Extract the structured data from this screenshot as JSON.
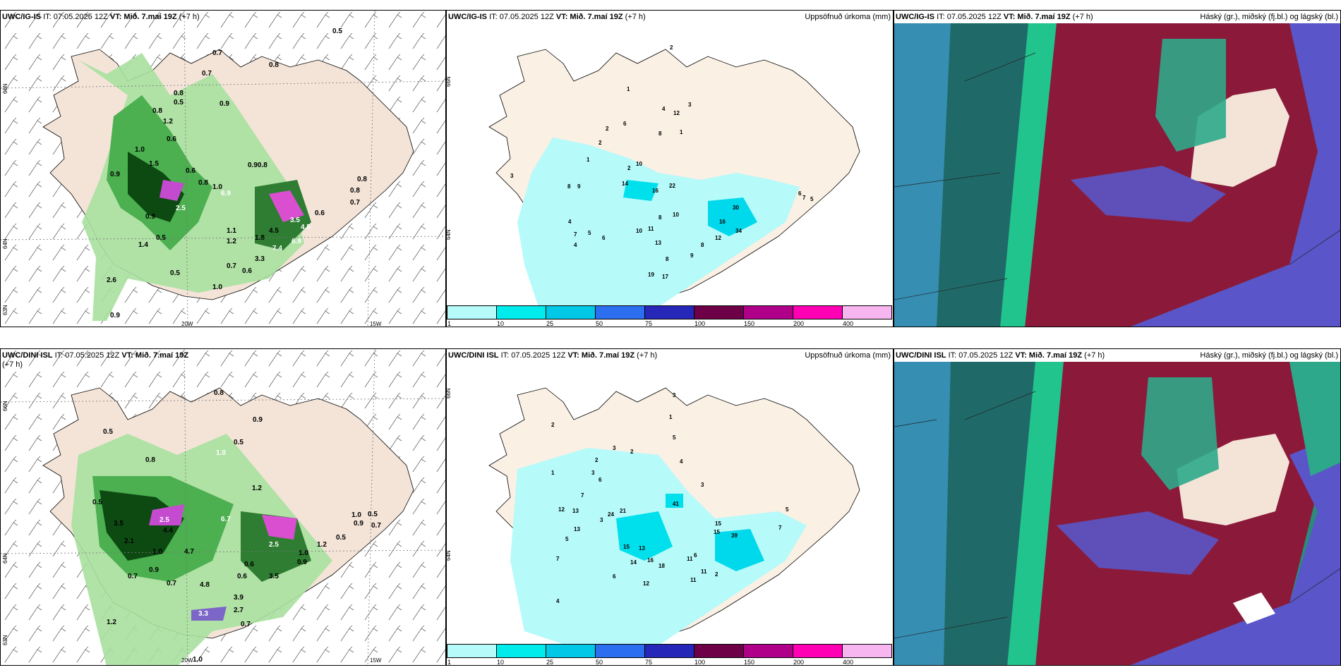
{
  "panels": {
    "wind_top": {
      "model": "UWC/IG-IS",
      "run_label": "IT: 07.05.2025 12Z",
      "valid_label": "VT: Mið. 7.maí 19Z",
      "lead": "(+7 h)",
      "lat_labels": [
        "66N",
        "64N",
        "63N"
      ],
      "lon_labels": [
        "20W",
        "15W"
      ],
      "values": [
        "0.5",
        "0.7",
        "0.7",
        "0.8",
        "0.8",
        "0.5",
        "0.9",
        "0.8",
        "1.2",
        "0.6",
        "0.9",
        "1.0",
        "1.5",
        "0.6",
        "0.90.8",
        "1.0",
        "0.8",
        "2.5",
        "0.9",
        "6.9",
        "4.5",
        "3.5",
        "1.8",
        "1.4",
        "1.1",
        "1.2",
        "3.3",
        "7.4",
        "6.9",
        "4.5",
        "0.5",
        "0.7",
        "0.6",
        "0.5",
        "1.0",
        "2.6",
        "0.9",
        "0.6",
        "0.8",
        "0.8",
        "0.7"
      ]
    },
    "precip_top": {
      "model": "UWC/IG-IS",
      "run_label": "IT: 07.05.2025 12Z",
      "valid_label": "VT: Mið. 7.maí 19Z",
      "lead": "(+7 h)",
      "field_title": "Uppsöfnuð úrkoma (mm)",
      "lat_labels": [
        "66N",
        "64N"
      ],
      "values": [
        "2",
        "1",
        "4",
        "12",
        "8",
        "1",
        "3",
        "2",
        "6",
        "2",
        "1",
        "10",
        "2",
        "3",
        "8",
        "9",
        "14",
        "16",
        "22",
        "10",
        "30",
        "16",
        "34",
        "12",
        "6",
        "7",
        "5",
        "4",
        "7",
        "10",
        "11",
        "8",
        "4",
        "13",
        "8",
        "9",
        "19",
        "17",
        "8",
        "6",
        "5"
      ]
    },
    "cloud_top": {
      "model": "UWC/IG-IS",
      "run_label": "IT: 07.05.2025 12Z",
      "valid_label": "VT: Mið. 7.maí 19Z",
      "lead": "(+7 h)",
      "field_title": "Háský (gr.), miðský (fj.bl.) og lágský (bl.)"
    },
    "wind_bottom": {
      "model": "UWC/DINI ISL",
      "run_label": "IT: 07.05.2025 12Z",
      "valid_label": "VT: Mið. 7.maí 19Z",
      "lead": "(+7 h)",
      "lat_labels": [
        "66N",
        "64N",
        "63N"
      ],
      "lon_labels": [
        "20W",
        "15W"
      ],
      "values": [
        "0.8",
        "0.9",
        "0.5",
        "1.0",
        "0.5",
        "0.8",
        "0.5",
        "1.2",
        "3.5",
        "2.1",
        "1.0",
        "0.7",
        "0.9",
        "2.5",
        "4.4",
        "4.7",
        "6.7",
        "3.5",
        "2.5",
        "1.0",
        "0.9",
        "0.5",
        "1.2",
        "0.7",
        "0.6",
        "4.8",
        "3.9",
        "2.7",
        "0.6",
        "1.2",
        "1.0",
        "3.3",
        "0.7",
        "0.9",
        "1.0",
        "0.5",
        "0.7"
      ]
    },
    "precip_bottom": {
      "model": "UWC/DINI ISL",
      "run_label": "IT: 07.05.2025 12Z",
      "valid_label": "VT: Mið. 7.maí 19Z",
      "lead": "(+7 h)",
      "field_title": "Uppsöfnuð úrkoma (mm)",
      "lat_labels": [
        "66N",
        "64N"
      ],
      "values": [
        "3",
        "1",
        "2",
        "5",
        "3",
        "2",
        "4",
        "2",
        "1",
        "3",
        "6",
        "3",
        "7",
        "12",
        "13",
        "24",
        "21",
        "41",
        "15",
        "39",
        "15",
        "13",
        "16",
        "12",
        "14",
        "11",
        "7",
        "11",
        "7",
        "4",
        "5",
        "3",
        "6",
        "18",
        "2",
        "5",
        "6",
        "13",
        "15",
        "11"
      ]
    },
    "cloud_bottom": {
      "model": "UWC/DINI ISL",
      "run_label": "IT: 07.05.2025 12Z",
      "valid_label": "VT: Mið. 7.maí 19Z",
      "lead": "(+7 h)",
      "field_title": "Háský (gr.), miðský (fj.bl.) og lágský (bl.)"
    }
  },
  "colorbar": {
    "labels": [
      "1",
      "10",
      "25",
      "50",
      "75",
      "100",
      "150",
      "200",
      "400"
    ],
    "colors": [
      "#b6fafa",
      "#00ecec",
      "#00c8e6",
      "#2c6ef0",
      "#2626b8",
      "#6e0048",
      "#b0008a",
      "#ff00b4",
      "#f7b6f0"
    ]
  },
  "palette": {
    "land": "#f4e4d8",
    "green_light": "#a8e0a0",
    "green_mid": "#4caf50",
    "green_dark": "#0d4a12",
    "precip_light": "#b6fafa",
    "precip_mid": "#00ecec",
    "cloud_sea": "#1b6b6b",
    "cloud_high": "#8b1a3a",
    "cloud_mid": "#5a55c8",
    "cloud_low": "#2ea88a"
  }
}
